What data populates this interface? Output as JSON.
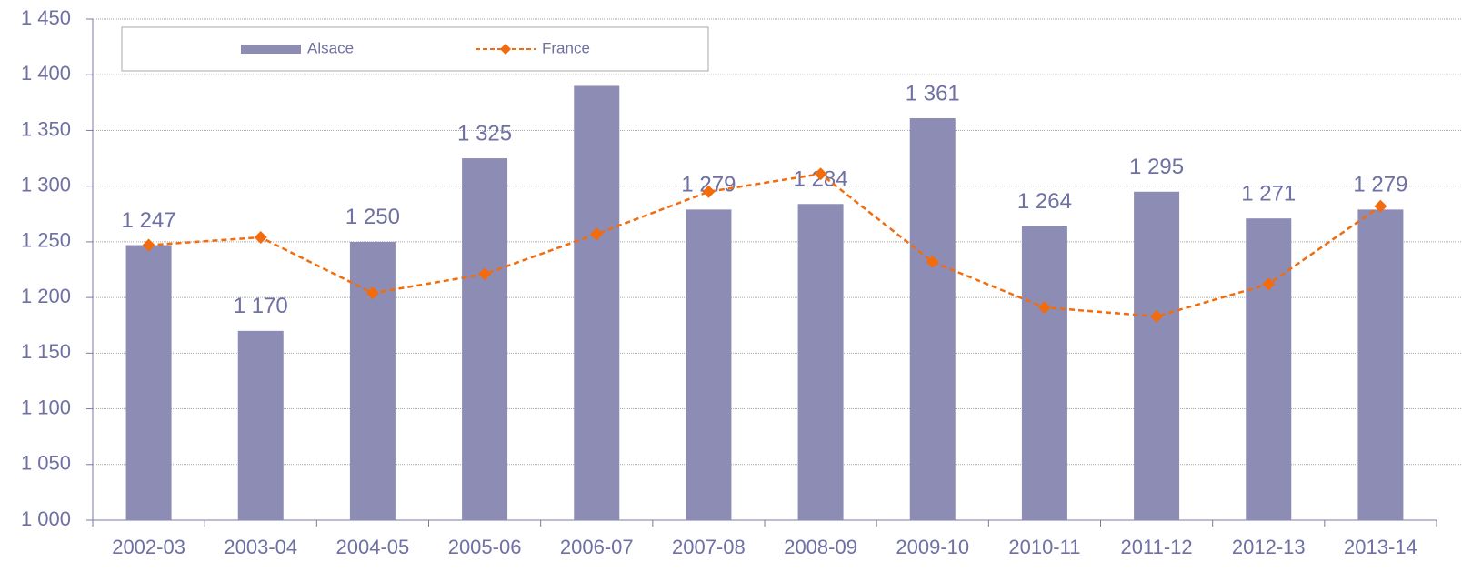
{
  "chart_data": {
    "type": "bar_line",
    "categories": [
      "2002-03",
      "2003-04",
      "2004-05",
      "2005-06",
      "2006-07",
      "2007-08",
      "2008-09",
      "2009-10",
      "2010-11",
      "2011-12",
      "2012-13",
      "2013-14"
    ],
    "series": [
      {
        "name": "Alsace",
        "type": "bar",
        "color": "#8c8cb5",
        "values": [
          1247,
          1170,
          1250,
          1325,
          1390,
          1279,
          1284,
          1361,
          1264,
          1295,
          1271,
          1279
        ],
        "value_labels": [
          "1 247",
          "1 170",
          "1 250",
          "1 325",
          null,
          "1 279",
          "1 284",
          "1 361",
          "1 264",
          "1 295",
          "1 271",
          "1 279"
        ]
      },
      {
        "name": "France",
        "type": "line",
        "color": "#f26c0d",
        "values": [
          1247,
          1254,
          1204,
          1221,
          1257,
          1295,
          1311,
          1232,
          1191,
          1183,
          1212,
          1282
        ]
      }
    ],
    "ylim": [
      1000,
      1450
    ],
    "yticks": [
      {
        "value": 1000,
        "label": "1 000"
      },
      {
        "value": 1050,
        "label": "1 050"
      },
      {
        "value": 1100,
        "label": "1 100"
      },
      {
        "value": 1150,
        "label": "1 150"
      },
      {
        "value": 1200,
        "label": "1 200"
      },
      {
        "value": 1250,
        "label": "1 250"
      },
      {
        "value": 1300,
        "label": "1 300"
      },
      {
        "value": 1350,
        "label": "1 350"
      },
      {
        "value": 1400,
        "label": "1 400"
      },
      {
        "value": 1450,
        "label": "1 450"
      }
    ],
    "grid": true,
    "legend": "top"
  }
}
